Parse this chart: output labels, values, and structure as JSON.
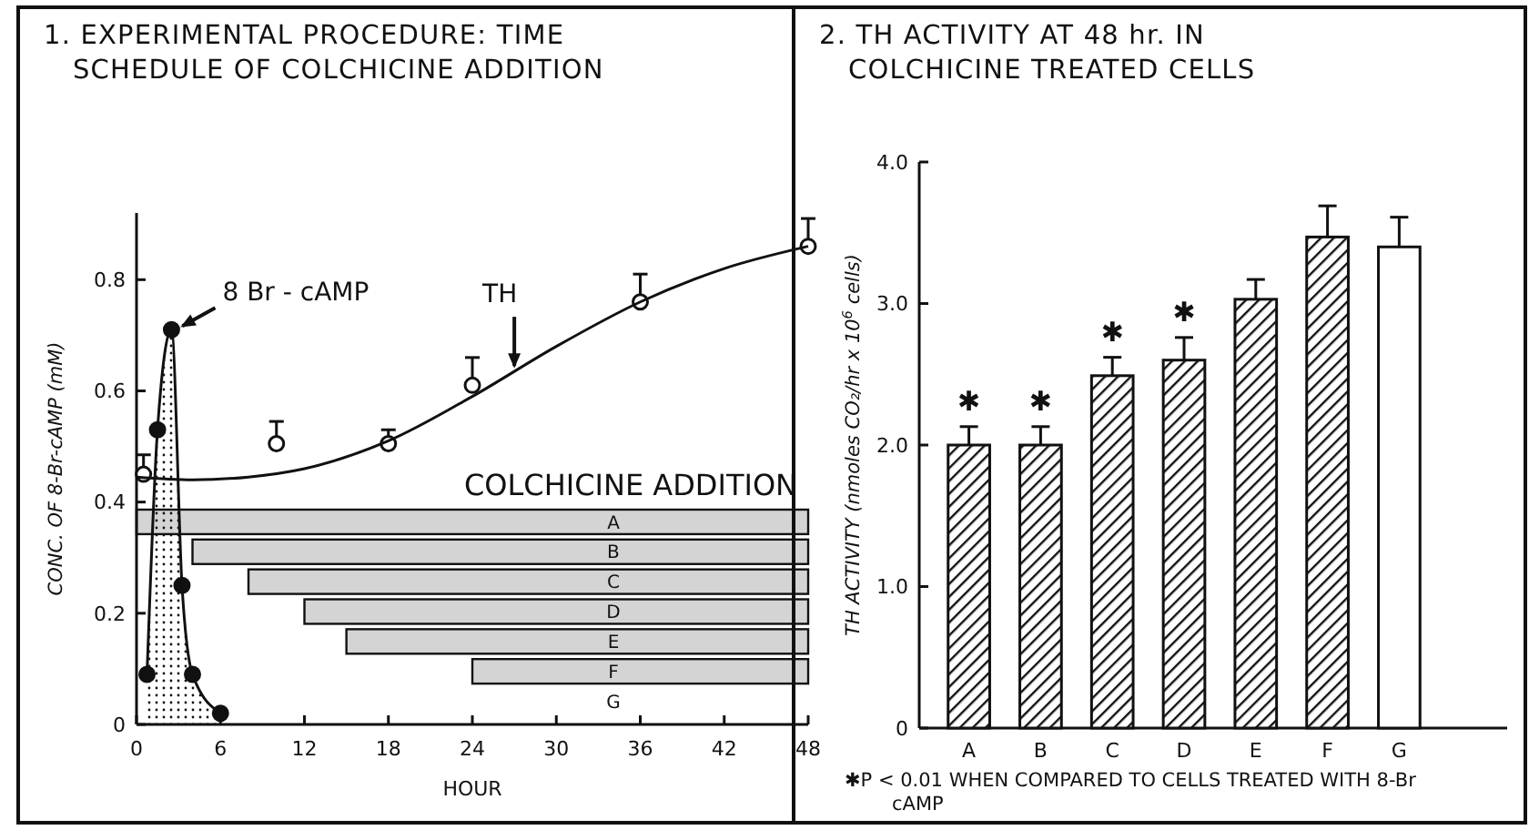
{
  "chart_data": [
    {
      "type": "line",
      "title": "1. EXPERIMENTAL PROCEDURE: TIME SCHEDULE OF COLCHICINE ADDITION",
      "xlabel": "HOUR",
      "ylabel": "CONC. OF 8-Br-cAMP (mM)",
      "xlim": [
        0,
        48
      ],
      "ylim": [
        0,
        0.92
      ],
      "xticks": [
        0,
        6,
        12,
        18,
        24,
        30,
        36,
        42,
        48
      ],
      "yticks": [
        0,
        0.2,
        0.4,
        0.6,
        0.8
      ],
      "series": [
        {
          "name": "8 Br - cAMP",
          "type": "area",
          "color": "#111111",
          "marker": "circle",
          "x": [
            0.75,
            1.5,
            2.5,
            3.25,
            4,
            6
          ],
          "values": [
            0.09,
            0.53,
            0.71,
            0.25,
            0.09,
            0.02
          ]
        },
        {
          "type": "scatter",
          "color": "#111111",
          "marker": "circle",
          "x": [
            0.5,
            10,
            18,
            24,
            36,
            48
          ],
          "values": [
            0.45,
            0.505,
            0.505,
            0.61,
            0.76,
            0.86
          ],
          "errors": [
            [
              0.45,
              0.485
            ],
            [
              0.505,
              0.545
            ],
            [
              0.505,
              0.53
            ],
            [
              0.61,
              0.66
            ],
            [
              0.76,
              0.81
            ],
            [
              0.86,
              0.91
            ]
          ]
        },
        {
          "name": "TH",
          "type": "line",
          "color": "#111111",
          "marker": "none",
          "x": [
            0,
            4,
            8,
            12,
            18,
            24,
            30,
            36,
            42,
            48
          ],
          "values": [
            0.445,
            0.44,
            0.445,
            0.46,
            0.51,
            0.59,
            0.68,
            0.76,
            0.82,
            0.86
          ]
        }
      ]
    },
    {
      "type": "bar",
      "orientation": "horizontal",
      "title": "COLCHICINE ADDITION",
      "categories": [
        "A",
        "B",
        "C",
        "D",
        "E",
        "F",
        "G"
      ],
      "base": [
        0,
        4,
        8,
        12,
        15,
        24,
        null
      ],
      "values": [
        48,
        44,
        40,
        36,
        33,
        24,
        null
      ],
      "color": "#d4d4d4",
      "xlim": [
        0,
        48
      ],
      "tick_labels": "y"
    },
    {
      "type": "bar",
      "title": "2. TH ACTIVITY AT 48 hr. IN COLCHICINE TREATED CELLS",
      "ylabel": "TH ACTIVITY (nmoles CO₂/hr x 10$^{6}$ cells)",
      "categories": [
        "A",
        "B",
        "C",
        "D",
        "E",
        "F",
        "G"
      ],
      "values": [
        2.0,
        2.0,
        2.49,
        2.6,
        3.03,
        3.47,
        3.4
      ],
      "colors": [
        "#111111",
        "#111111",
        "#111111",
        "#111111",
        "#111111",
        "#111111",
        "#ffffff"
      ],
      "errors": [
        [
          2.0,
          2.13
        ],
        [
          2.0,
          2.13
        ],
        [
          2.49,
          2.62
        ],
        [
          2.6,
          2.76
        ],
        [
          3.03,
          3.17
        ],
        [
          3.47,
          3.69
        ],
        [
          3.4,
          3.61
        ]
      ],
      "value_labels": [
        "✱",
        "✱",
        "✱",
        "✱",
        null,
        null,
        null
      ],
      "ylim": [
        0,
        4
      ],
      "yticks": [
        0,
        {
          "value": 1,
          "label": "1.0"
        },
        {
          "value": 2,
          "label": "2.0"
        },
        {
          "value": 3,
          "label": "3.0"
        },
        {
          "value": 4,
          "label": "4.0"
        }
      ],
      "annotations": [
        "✱P < 0.01 WHEN COMPARED TO CELLS TREATED WITH 8-Br cAMP"
      ]
    }
  ]
}
